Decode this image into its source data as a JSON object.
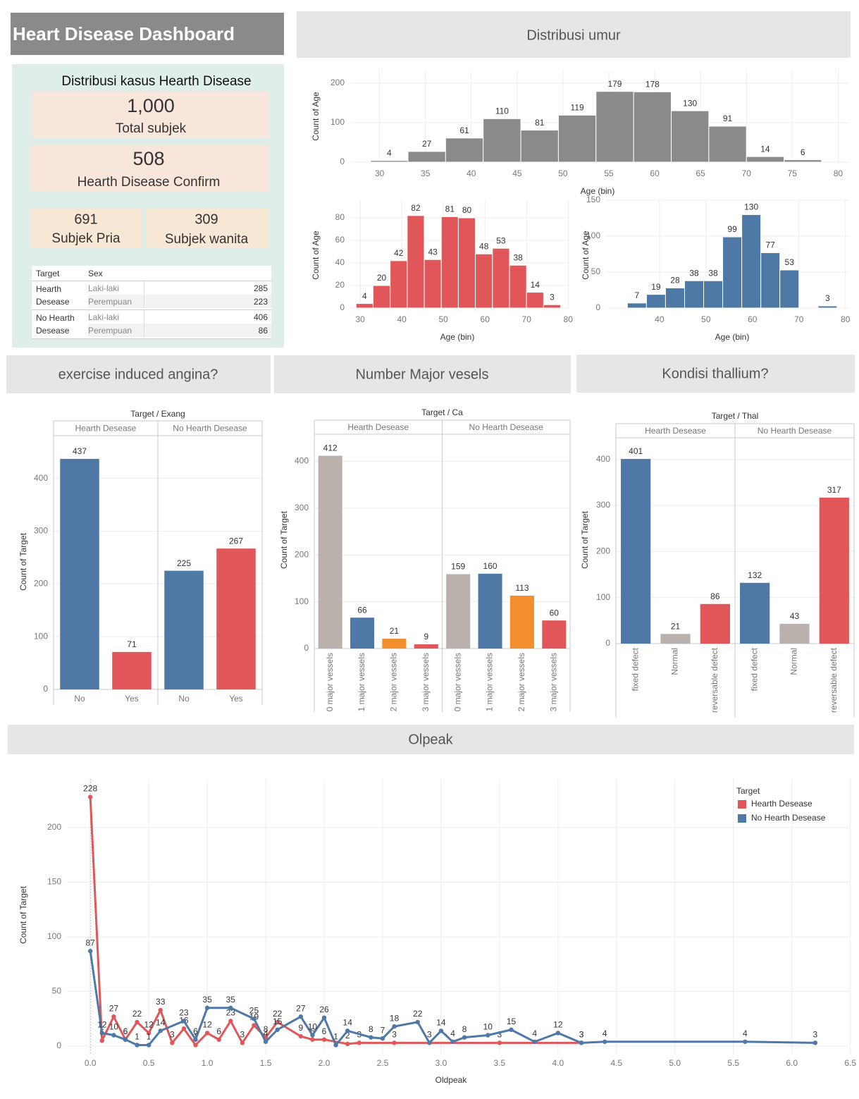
{
  "header": {
    "title": "Heart Disease Dashboard"
  },
  "sections": [
    "Distribusi umur",
    "exercise induced angina?",
    "Number Major vesels",
    "Kondisi thallium?",
    "Olpeak"
  ],
  "summary": {
    "title": "Distribusi kasus Hearth Disease",
    "cards": [
      {
        "value": "1,000",
        "label": "Total subjek"
      },
      {
        "value": 508,
        "label": "Hearth Disease Confirm"
      },
      {
        "value": 691,
        "label": "Subjek Pria"
      },
      {
        "value": 309,
        "label": "Subjek wanita"
      }
    ]
  },
  "table": {
    "columns": [
      "Target",
      "Sex"
    ],
    "groups": [
      {
        "target": "Hearth Desease",
        "rows": [
          [
            "Laki-laki",
            285
          ],
          [
            "Perempuan",
            223
          ]
        ]
      },
      {
        "target": "No Hearth Desease",
        "rows": [
          [
            "Laki-laki",
            406
          ],
          [
            "Perempuan",
            86
          ]
        ]
      }
    ]
  },
  "chart_data": [
    {
      "type": "histogram",
      "xlabel": "Age (bin)",
      "ylabel": "Count of Age",
      "color": "#8a8a8a",
      "bins": [
        29,
        33.1,
        37.2,
        41.3,
        45.4,
        49.5,
        53.6,
        57.7,
        61.8,
        65.9,
        70,
        74.1,
        78.2
      ],
      "values": [
        4,
        27,
        61,
        110,
        81,
        119,
        179,
        178,
        130,
        91,
        14,
        6
      ],
      "xlim": [
        26.8,
        81.2
      ],
      "xticks": [
        30,
        35,
        40,
        45,
        50,
        55,
        60,
        65,
        70,
        75,
        80
      ],
      "ylim": [
        0,
        232
      ],
      "yticks": [
        0,
        100,
        200
      ],
      "grid": true
    },
    {
      "type": "histogram",
      "xlabel": "Age (bin)",
      "ylabel": "Count of Age",
      "color": "#e15759",
      "bins": [
        29,
        33.1,
        37.2,
        41.3,
        45.4,
        49.5,
        53.6,
        57.7,
        61.8,
        65.9,
        70,
        74.1,
        78.2
      ],
      "values": [
        4,
        20,
        42,
        82,
        43,
        81,
        80,
        48,
        53,
        38,
        14,
        3
      ],
      "xlim": [
        27.6,
        80.3
      ],
      "xticks": [
        30,
        40,
        50,
        60,
        70,
        80
      ],
      "ylim": [
        0,
        95
      ],
      "yticks": [
        0,
        20,
        40,
        60,
        80
      ],
      "grid": true
    },
    {
      "type": "histogram",
      "xlabel": "Age (bin)",
      "ylabel": "Count of Age",
      "color": "#4e79a7",
      "bins": [
        33.1,
        37.2,
        41.3,
        45.4,
        49.5,
        53.6,
        57.7,
        61.8,
        65.9,
        70,
        74.1,
        78.2
      ],
      "values": [
        7,
        19,
        28,
        38,
        38,
        99,
        130,
        77,
        53,
        null,
        3
      ],
      "xlim": [
        28.5,
        80.8
      ],
      "xticks": [
        40,
        50,
        60,
        70,
        80
      ],
      "ylim": [
        0,
        152
      ],
      "yticks": [
        0,
        50,
        100,
        150
      ],
      "grid": true
    },
    {
      "type": "bar",
      "title": "Target / Exang",
      "ylabel": "Count of Target",
      "categories": [
        "No",
        "Yes"
      ],
      "colors": [
        "#4e79a7",
        "#e15759"
      ],
      "panels": [
        {
          "name": "Hearth Desease",
          "values": [
            437,
            71
          ]
        },
        {
          "name": "No Hearth Desease",
          "values": [
            225,
            267
          ]
        }
      ],
      "ylim": [
        0,
        481
      ],
      "yticks": [
        0,
        100,
        200,
        300,
        400
      ],
      "grid": true
    },
    {
      "type": "bar",
      "title": "Target / Ca",
      "ylabel": "Count of Target",
      "categories": [
        "0 major vessels",
        "1 major vessels",
        "2 major vessels",
        "3 major vessels"
      ],
      "colors": [
        "#bab0ac",
        "#4e79a7",
        "#f28e2b",
        "#e15759"
      ],
      "panels": [
        {
          "name": "Hearth Desease",
          "values": [
            412,
            66,
            21,
            9
          ]
        },
        {
          "name": "No Hearth Desease",
          "values": [
            159,
            160,
            113,
            60
          ]
        }
      ],
      "ylim": [
        0,
        458
      ],
      "yticks": [
        0,
        100,
        200,
        300,
        400
      ],
      "grid": true
    },
    {
      "type": "bar",
      "title": "Target / Thal",
      "ylabel": "Count of Target",
      "categories": [
        "fixed defect",
        "Normal",
        "reversable defect"
      ],
      "colors": [
        "#4e79a7",
        "#bab0ac",
        "#e15759"
      ],
      "panels": [
        {
          "name": "Hearth Desease",
          "values": [
            401,
            21,
            86
          ]
        },
        {
          "name": "No Hearth Desease",
          "values": [
            132,
            43,
            317
          ]
        }
      ],
      "ylim": [
        0,
        447
      ],
      "yticks": [
        0,
        100,
        200,
        300,
        400
      ],
      "grid": true
    },
    {
      "type": "line",
      "xlabel": "Oldpeak",
      "ylabel": "Count of Target",
      "legend_title": "Target",
      "legend": "top-right",
      "series": [
        {
          "name": "Hearth Desease",
          "color": "#e15759",
          "x": [
            0,
            0.1,
            0.2,
            0.3,
            0.4,
            0.5,
            0.6,
            0.7,
            0.8,
            0.9,
            1.0,
            1.1,
            1.2,
            1.3,
            1.4,
            1.5,
            1.6,
            1.8,
            1.9,
            2.0,
            2.2,
            2.3,
            2.6,
            3.5,
            4.2
          ],
          "values": [
            228,
            5,
            27,
            6,
            22,
            12,
            33,
            3,
            16,
            1,
            12,
            6,
            23,
            3,
            19,
            8,
            22,
            9,
            6,
            6,
            2,
            3,
            3,
            3,
            3
          ]
        },
        {
          "name": "No Hearth Desease",
          "color": "#4e79a7",
          "x": [
            0,
            0.1,
            0.2,
            0.3,
            0.4,
            0.5,
            0.6,
            0.8,
            0.9,
            1.0,
            1.2,
            1.4,
            1.5,
            1.6,
            1.8,
            1.9,
            2.0,
            2.1,
            2.2,
            2.4,
            2.5,
            2.6,
            2.8,
            2.9,
            3.0,
            3.1,
            3.2,
            3.4,
            3.6,
            3.8,
            4.0,
            4.2,
            4.4,
            5.6,
            6.2
          ],
          "values": [
            87,
            12,
            10,
            6,
            1,
            1,
            14,
            23,
            6,
            35,
            35,
            25,
            4,
            15,
            27,
            10,
            26,
            1,
            14,
            8,
            7,
            18,
            22,
            3,
            14,
            4,
            8,
            10,
            15,
            4,
            12,
            3,
            4,
            4,
            3
          ]
        }
      ],
      "xlim": [
        -0.2,
        6.49
      ],
      "xticks": [
        {
          "value": 0,
          "label": "0.0"
        },
        0.5,
        {
          "value": 1,
          "label": "1.0"
        },
        1.5,
        {
          "value": 2,
          "label": "2.0"
        },
        2.5,
        {
          "value": 3,
          "label": "3.0"
        },
        3.5,
        {
          "value": 4,
          "label": "4.0"
        },
        4.5,
        {
          "value": 5,
          "label": "5.0"
        },
        5.5,
        {
          "value": 6,
          "label": "6.0"
        },
        6.5
      ],
      "ylim": [
        -7.1,
        244.5
      ],
      "yticks": [
        0,
        50,
        100,
        150,
        200
      ],
      "grid": true
    }
  ]
}
